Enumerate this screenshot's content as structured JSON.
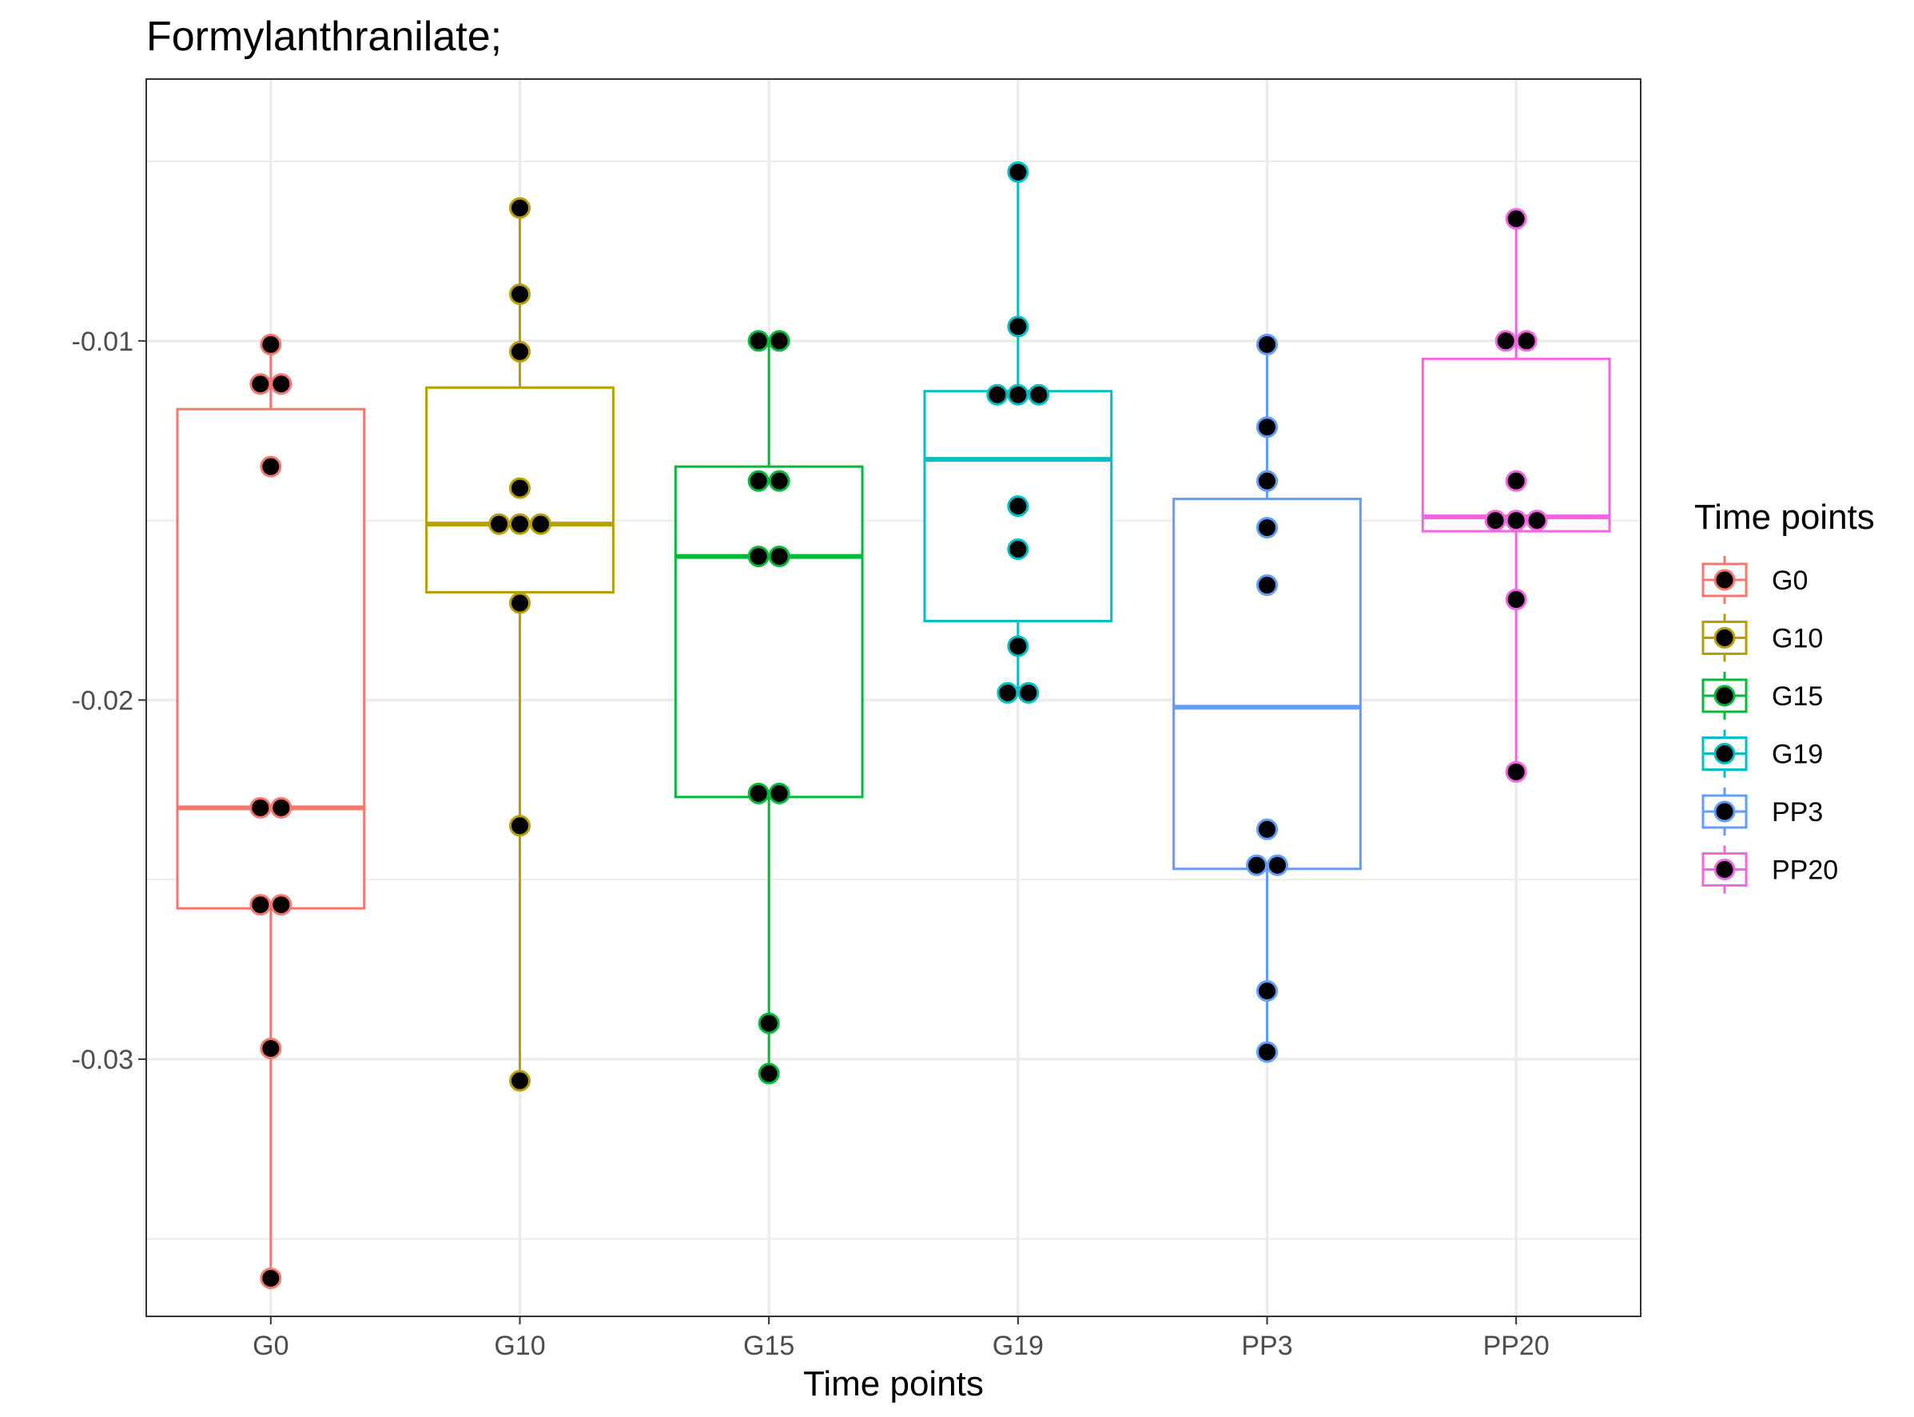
{
  "chart_data": {
    "type": "box",
    "title": "Formylanthranilate;",
    "xlabel": "Time points",
    "ylabel": "",
    "ylim": [
      -0.0372,
      -0.0027
    ],
    "y_ticks": [
      -0.01,
      -0.02,
      -0.03
    ],
    "y_tick_labels": [
      "-0.01",
      "-0.02",
      "-0.03"
    ],
    "categories": [
      "G0",
      "G10",
      "G15",
      "G19",
      "PP3",
      "PP20"
    ],
    "grid": true,
    "legend": {
      "title": "Time points",
      "position": "right"
    },
    "series": [
      {
        "name": "G0",
        "color": "#F8766D",
        "box": {
          "min": -0.0361,
          "q1": -0.0258,
          "median": -0.023,
          "q3": -0.0119,
          "max": -0.0101
        },
        "points": [
          -0.0101,
          -0.0112,
          -0.0112,
          -0.0135,
          -0.023,
          -0.023,
          -0.0257,
          -0.0257,
          -0.0297,
          -0.0361
        ]
      },
      {
        "name": "G10",
        "color": "#B79F00",
        "box": {
          "min": -0.0306,
          "q1": -0.017,
          "median": -0.0151,
          "q3": -0.0113,
          "max": -0.0063
        },
        "points": [
          -0.0063,
          -0.0087,
          -0.0103,
          -0.0141,
          -0.0151,
          -0.0151,
          -0.0151,
          -0.0173,
          -0.0235,
          -0.0306
        ]
      },
      {
        "name": "G15",
        "color": "#00BA38",
        "box": {
          "min": -0.0304,
          "q1": -0.0227,
          "median": -0.016,
          "q3": -0.0135,
          "max": -0.01
        },
        "points": [
          -0.01,
          -0.01,
          -0.0139,
          -0.0139,
          -0.016,
          -0.016,
          -0.0226,
          -0.0226,
          -0.029,
          -0.0304
        ]
      },
      {
        "name": "G19",
        "color": "#00BFC4",
        "box": {
          "min": -0.0198,
          "q1": -0.0178,
          "median": -0.0133,
          "q3": -0.0114,
          "max": -0.0053
        },
        "points": [
          -0.0053,
          -0.0096,
          -0.0115,
          -0.0115,
          -0.0115,
          -0.0146,
          -0.0158,
          -0.0185,
          -0.0198,
          -0.0198
        ]
      },
      {
        "name": "PP3",
        "color": "#619CFF",
        "box": {
          "min": -0.0298,
          "q1": -0.0247,
          "median": -0.0202,
          "q3": -0.0144,
          "max": -0.0101
        },
        "points": [
          -0.0101,
          -0.0124,
          -0.0139,
          -0.0152,
          -0.0168,
          -0.0236,
          -0.0246,
          -0.0246,
          -0.0281,
          -0.0298
        ]
      },
      {
        "name": "PP20",
        "color": "#F564E3",
        "box": {
          "min": -0.022,
          "q1": -0.0153,
          "median": -0.0149,
          "q3": -0.0105,
          "max": -0.0066
        },
        "points": [
          -0.0066,
          -0.01,
          -0.01,
          -0.0139,
          -0.015,
          -0.015,
          -0.015,
          -0.0172,
          -0.022
        ]
      }
    ]
  }
}
